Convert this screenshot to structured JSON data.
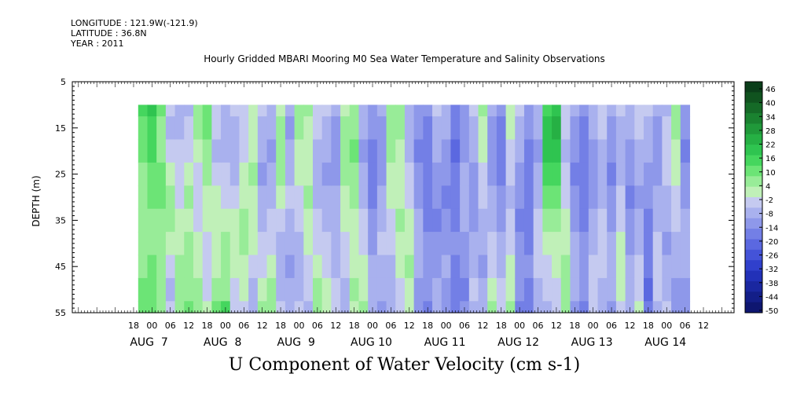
{
  "header": {
    "longitude": "LONGITUDE : 121.9W(-121.9)",
    "latitude": "LATITUDE : 36.8N",
    "year": "YEAR : 2011"
  },
  "title": "Hourly Gridded MBARI Mooring M0 Sea Water Temperature and Salinity Observations",
  "bottom_title": "U Component of Water Velocity (cm s-1)",
  "chart_data": {
    "type": "heatmap",
    "ylabel": "DEPTH (m)",
    "ylim": [
      55,
      5
    ],
    "y_ticks": [
      5,
      15,
      25,
      35,
      45,
      55
    ],
    "x_hours": [
      "18",
      "00",
      "06",
      "12",
      "18",
      "00",
      "06",
      "12",
      "18",
      "00",
      "06",
      "12",
      "18",
      "00",
      "06",
      "12",
      "18",
      "00",
      "06",
      "12",
      "18",
      "00",
      "06",
      "12",
      "18",
      "00",
      "06",
      "12",
      "18",
      "00",
      "06",
      "12"
    ],
    "x_days": [
      "AUG  7",
      "AUG  8",
      "AUG  9",
      "AUG 10",
      "AUG 11",
      "AUG 12",
      "AUG 13",
      "AUG 14"
    ],
    "data_depth_range": [
      10,
      55
    ],
    "colorbar_labels": [
      "46",
      "40",
      "34",
      "28",
      "22",
      "16",
      "10",
      "4",
      "-2",
      "-8",
      "-14",
      "-20",
      "-26",
      "-32",
      "-38",
      "-44",
      "-50"
    ],
    "colorbar_range": [
      -50,
      50
    ],
    "colorbar_colors": [
      "#0b3e1a",
      "#10531f",
      "#156a27",
      "#1a8230",
      "#20993a",
      "#26b044",
      "#2fc450",
      "#45d65e",
      "#6ce476",
      "#98ec98",
      "#c0f0b8",
      "#c5caf0",
      "#a9b1ee",
      "#8e98ea",
      "#737fe6",
      "#5b68e0",
      "#4453d8",
      "#3040cc",
      "#2231b8",
      "#1a27a0",
      "#131e88",
      "#0e1670"
    ],
    "columns": [
      {
        "t": -3,
        "u": [
          null,
          14,
          12,
          10,
          9,
          8,
          7,
          8,
          9,
          10,
          11,
          10
        ]
      },
      {
        "t": 0,
        "u": [
          null,
          20,
          18,
          15,
          12,
          10,
          8,
          9,
          10,
          12,
          13,
          12
        ]
      },
      {
        "t": 3,
        "u": [
          null,
          10,
          8,
          9,
          10,
          11,
          8,
          6,
          5,
          6,
          8,
          9
        ]
      },
      {
        "t": 6,
        "u": [
          null,
          -4,
          -6,
          -2,
          4,
          6,
          5,
          2,
          -2,
          -6,
          -4,
          -2
        ]
      },
      {
        "t": 9,
        "u": [
          null,
          -8,
          -6,
          -4,
          -3,
          -2,
          2,
          4,
          6,
          8,
          8,
          6
        ]
      },
      {
        "t": 12,
        "u": [
          null,
          -6,
          -4,
          -2,
          4,
          6,
          4,
          5,
          6,
          9,
          10,
          9
        ]
      },
      {
        "t": 15,
        "u": [
          null,
          6,
          5,
          3,
          -2,
          -4,
          -3,
          2,
          4,
          6,
          7,
          6
        ]
      },
      {
        "t": 18,
        "u": [
          null,
          12,
          10,
          8,
          6,
          4,
          2,
          -2,
          -4,
          -2,
          2,
          4
        ]
      },
      {
        "t": 21,
        "u": [
          null,
          -2,
          -4,
          -6,
          -4,
          2,
          4,
          3,
          2,
          6,
          10,
          12
        ]
      },
      {
        "t": 24,
        "u": [
          null,
          -6,
          -8,
          -6,
          -4,
          -2,
          4,
          6,
          5,
          8,
          14,
          16
        ]
      },
      {
        "t": 27,
        "u": [
          null,
          -4,
          -6,
          -8,
          -6,
          -4,
          2,
          4,
          3,
          -2,
          -4,
          -2
        ]
      },
      {
        "t": 30,
        "u": [
          null,
          -2,
          -4,
          -2,
          2,
          4,
          6,
          5,
          4,
          2,
          -4,
          -6
        ]
      },
      {
        "t": 33,
        "u": [
          null,
          2,
          3,
          4,
          6,
          4,
          3,
          2,
          -4,
          -6,
          -6,
          -4
        ]
      },
      {
        "t": 36,
        "u": [
          null,
          -4,
          -6,
          -8,
          -10,
          -8,
          -6,
          -4,
          -2,
          4,
          6,
          4
        ]
      },
      {
        "t": 39,
        "u": [
          null,
          -6,
          -8,
          -10,
          -8,
          -6,
          -4,
          -2,
          4,
          6,
          8,
          6
        ]
      },
      {
        "t": 42,
        "u": [
          null,
          4,
          6,
          8,
          6,
          4,
          -2,
          -6,
          -8,
          -6,
          -4,
          -2
        ]
      },
      {
        "t": 45,
        "u": [
          null,
          -8,
          -10,
          -8,
          -6,
          -4,
          -6,
          -8,
          -10,
          -8,
          -6,
          -4
        ]
      },
      {
        "t": 48,
        "u": [
          null,
          8,
          6,
          4,
          2,
          -2,
          -4,
          -6,
          -8,
          -6,
          -4,
          -2
        ]
      },
      {
        "t": 51,
        "u": [
          null,
          6,
          4,
          2,
          4,
          6,
          4,
          2,
          -2,
          -4,
          -6,
          -8
        ]
      },
      {
        "t": 54,
        "u": [
          null,
          -2,
          -4,
          -6,
          -8,
          -6,
          -4,
          -2,
          4,
          6,
          8,
          6
        ]
      },
      {
        "t": 57,
        "u": [
          null,
          -4,
          -6,
          -8,
          -10,
          -8,
          -6,
          -4,
          -2,
          2,
          4,
          6
        ]
      },
      {
        "t": 60,
        "u": [
          null,
          -8,
          -10,
          -12,
          -10,
          -8,
          -6,
          -8,
          -6,
          -4,
          -2,
          4
        ]
      },
      {
        "t": 63,
        "u": [
          null,
          4,
          6,
          8,
          6,
          4,
          2,
          -2,
          -4,
          -6,
          -8,
          -6
        ]
      },
      {
        "t": 66,
        "u": [
          null,
          6,
          8,
          10,
          8,
          6,
          4,
          2,
          4,
          6,
          4,
          2
        ]
      },
      {
        "t": 69,
        "u": [
          null,
          -6,
          -8,
          -10,
          -8,
          -6,
          -4,
          -2,
          2,
          4,
          6,
          8
        ]
      },
      {
        "t": 72,
        "u": [
          null,
          -10,
          -12,
          -14,
          -16,
          -14,
          -12,
          -10,
          -8,
          -6,
          -8,
          -10
        ]
      },
      {
        "t": 75,
        "u": [
          null,
          -8,
          -10,
          -12,
          -10,
          -8,
          -6,
          -4,
          -6,
          -8,
          -10,
          -12
        ]
      },
      {
        "t": 78,
        "u": [
          null,
          6,
          8,
          6,
          4,
          2,
          -2,
          -4,
          -6,
          -8,
          -6,
          -4
        ]
      },
      {
        "t": 81,
        "u": [
          null,
          8,
          6,
          4,
          2,
          4,
          6,
          4,
          2,
          -2,
          -4,
          -6
        ]
      },
      {
        "t": 84,
        "u": [
          null,
          -6,
          -8,
          -6,
          -4,
          -2,
          2,
          4,
          6,
          4,
          2,
          4
        ]
      },
      {
        "t": 87,
        "u": [
          null,
          -10,
          -12,
          -14,
          -12,
          -10,
          -8,
          -6,
          -8,
          -10,
          -12,
          -14
        ]
      },
      {
        "t": 90,
        "u": [
          null,
          -12,
          -14,
          -16,
          -18,
          -16,
          -14,
          -12,
          -10,
          -12,
          -14,
          -12
        ]
      },
      {
        "t": 93,
        "u": [
          null,
          -4,
          -6,
          -8,
          -10,
          -12,
          -14,
          -12,
          -10,
          -8,
          -6,
          -4
        ]
      },
      {
        "t": 96,
        "u": [
          null,
          -6,
          -8,
          -10,
          -12,
          -14,
          -12,
          -10,
          -8,
          -10,
          -12,
          -14
        ]
      },
      {
        "t": 99,
        "u": [
          null,
          -16,
          -18,
          -20,
          -18,
          -16,
          -14,
          -12,
          -14,
          -16,
          -18,
          -16
        ]
      },
      {
        "t": 102,
        "u": [
          null,
          -10,
          -12,
          -10,
          -8,
          -6,
          -8,
          -10,
          -12,
          -14,
          -12,
          -10
        ]
      },
      {
        "t": 105,
        "u": [
          null,
          -4,
          -6,
          -8,
          -10,
          -12,
          -10,
          -8,
          -6,
          -4,
          -6,
          -8
        ]
      },
      {
        "t": 108,
        "u": [
          null,
          6,
          4,
          2,
          -2,
          -4,
          -6,
          -8,
          -10,
          -8,
          -6,
          -4
        ]
      },
      {
        "t": 111,
        "u": [
          null,
          -8,
          -10,
          -12,
          -10,
          -8,
          -6,
          -4,
          -2,
          4,
          6,
          4
        ]
      },
      {
        "t": 114,
        "u": [
          null,
          -12,
          -14,
          -16,
          -14,
          -12,
          -10,
          -8,
          -6,
          -4,
          -2,
          2
        ]
      },
      {
        "t": 117,
        "u": [
          null,
          4,
          2,
          -2,
          -4,
          -6,
          -4,
          -2,
          2,
          4,
          6,
          4
        ]
      },
      {
        "t": 120,
        "u": [
          null,
          -4,
          -6,
          -8,
          -10,
          -12,
          -14,
          -12,
          -10,
          -12,
          -14,
          -16
        ]
      },
      {
        "t": 123,
        "u": [
          null,
          -10,
          -12,
          -14,
          -16,
          -18,
          -16,
          -14,
          -12,
          -14,
          -16,
          -18
        ]
      },
      {
        "t": 126,
        "u": [
          null,
          -6,
          -8,
          -10,
          -8,
          -6,
          -4,
          -2,
          -4,
          -6,
          -8,
          -10
        ]
      },
      {
        "t": 129,
        "u": [
          null,
          18,
          22,
          20,
          16,
          10,
          6,
          2,
          -2,
          -4,
          -6,
          -8
        ]
      },
      {
        "t": 132,
        "u": [
          null,
          20,
          24,
          22,
          18,
          12,
          8,
          4,
          2,
          -2,
          -4,
          -6
        ]
      },
      {
        "t": 135,
        "u": [
          null,
          -2,
          -4,
          -6,
          -4,
          -2,
          2,
          4,
          6,
          8,
          6,
          4
        ]
      },
      {
        "t": 138,
        "u": [
          null,
          -8,
          -10,
          -12,
          -14,
          -12,
          -10,
          -8,
          -6,
          -8,
          -10,
          -12
        ]
      },
      {
        "t": 141,
        "u": [
          null,
          -12,
          -14,
          -16,
          -18,
          -16,
          -14,
          -12,
          -10,
          -12,
          -14,
          -16
        ]
      },
      {
        "t": 144,
        "u": [
          null,
          -6,
          -8,
          -10,
          -12,
          -10,
          -8,
          -6,
          -4,
          -2,
          -4,
          -6
        ]
      },
      {
        "t": 147,
        "u": [
          null,
          -2,
          -4,
          -6,
          -8,
          -6,
          -4,
          -2,
          -4,
          -6,
          -8,
          -10
        ]
      },
      {
        "t": 150,
        "u": [
          null,
          -8,
          -10,
          -12,
          -14,
          -12,
          -10,
          -8,
          -6,
          -8,
          -10,
          -12
        ]
      },
      {
        "t": 153,
        "u": [
          null,
          -4,
          -6,
          -8,
          -6,
          -4,
          -2,
          2,
          4,
          2,
          -2,
          -4
        ]
      },
      {
        "t": 156,
        "u": [
          null,
          -6,
          -8,
          -10,
          -12,
          -14,
          -12,
          -10,
          -8,
          -6,
          -8,
          -10
        ]
      },
      {
        "t": 159,
        "u": [
          null,
          -2,
          -4,
          -6,
          -8,
          -10,
          -8,
          -6,
          -4,
          -2,
          2,
          4
        ]
      },
      {
        "t": 162,
        "u": [
          null,
          -4,
          -6,
          -8,
          -10,
          -12,
          -14,
          -16,
          -18,
          -20,
          -18,
          -16
        ]
      },
      {
        "t": 165,
        "u": [
          null,
          -8,
          -10,
          -12,
          -10,
          -8,
          -6,
          -4,
          -2,
          -4,
          -6,
          -8
        ]
      },
      {
        "t": 168,
        "u": [
          null,
          -6,
          -4,
          -2,
          -4,
          -6,
          -8,
          -10,
          -8,
          -6,
          -4,
          -2
        ]
      },
      {
        "t": 171,
        "u": [
          null,
          8,
          6,
          4,
          2,
          -2,
          -4,
          -6,
          -8,
          -10,
          -12,
          -14
        ]
      },
      {
        "t": 174,
        "u": [
          null,
          -10,
          -12,
          -14,
          -12,
          -10,
          -8,
          -6,
          -8,
          -10,
          -12,
          -14
        ]
      }
    ]
  }
}
